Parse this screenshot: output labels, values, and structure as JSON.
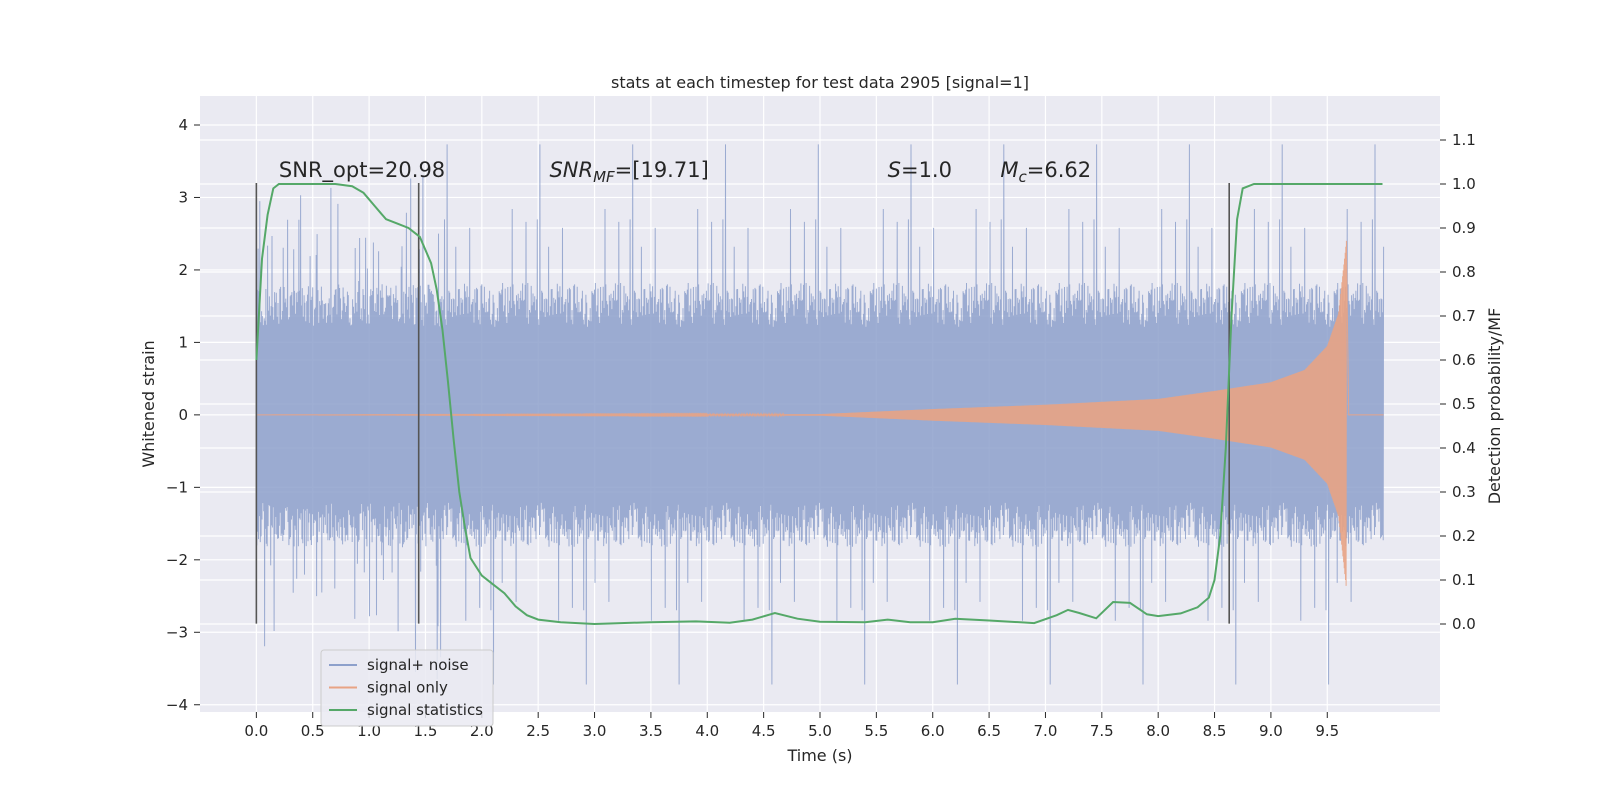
{
  "chart_data": {
    "type": "line",
    "title": "stats at each timestep for test data 2905 [signal=1]",
    "xlabel": "Time (s)",
    "ylabel": "Whitened strain",
    "ylabel_right": "Detection probability/MF",
    "xlim": [
      -0.5,
      10.5
    ],
    "ylim": [
      -4.1,
      4.4
    ],
    "ylim_right": [
      -0.2,
      1.2
    ],
    "x_ticks": [
      "0.0",
      "0.5",
      "1.0",
      "1.5",
      "2.0",
      "2.5",
      "3.0",
      "3.5",
      "4.0",
      "4.5",
      "5.0",
      "5.5",
      "6.0",
      "6.5",
      "7.0",
      "7.5",
      "8.0",
      "8.5",
      "9.0",
      "9.5"
    ],
    "y_ticks": [
      "4",
      "3",
      "2",
      "1",
      "0",
      "−1",
      "−2",
      "−3",
      "−4"
    ],
    "y_right_ticks": [
      "1.1",
      "1.0",
      "0.9",
      "0.8",
      "0.7",
      "0.6",
      "0.5",
      "0.4",
      "0.3",
      "0.2",
      "0.1",
      "0.0"
    ],
    "grid": true,
    "legend_position": "lower-left",
    "colors": {
      "noise": "#8da0cb",
      "signal": "#e8a384",
      "stats": "#55a868",
      "vline": "#555555",
      "background": "#eaeaf2"
    },
    "annotations": [
      {
        "text": "SNR_opt=20.98",
        "x": 0.2,
        "y": 3.28
      },
      {
        "text_parts": [
          "SNR",
          "MF",
          "=[19.71]"
        ],
        "x": 2.6,
        "y": 3.28,
        "style": "math-subscript"
      },
      {
        "text_parts": [
          "S",
          "",
          "=1.0"
        ],
        "x": 5.6,
        "y": 3.28,
        "style": "math"
      },
      {
        "text_parts": [
          "M",
          "c",
          "=6.62"
        ],
        "x": 6.6,
        "y": 3.28,
        "style": "math-subscript"
      }
    ],
    "vertical_lines": [
      0.0,
      1.44,
      8.63
    ],
    "vertical_line_range": [
      -2.88,
      3.2
    ],
    "series": [
      {
        "name": "signal+ noise",
        "kind": "noise",
        "x_range": [
          0.0,
          10.0
        ],
        "typical_amplitude": 1.35,
        "peak_amplitude": 4.0
      },
      {
        "name": "signal only",
        "kind": "chirp",
        "x_range": [
          0.0,
          9.67
        ],
        "envelope_x": [
          0.0,
          5.0,
          6.0,
          7.0,
          7.5,
          8.0,
          8.5,
          9.0,
          9.3,
          9.5,
          9.6,
          9.67
        ],
        "envelope_y": [
          0.0,
          0.01,
          0.08,
          0.14,
          0.18,
          0.22,
          0.33,
          0.45,
          0.62,
          0.95,
          1.4,
          2.4
        ],
        "merger_x": 9.67
      },
      {
        "name": "signal statistics",
        "kind": "line",
        "axis": "right",
        "x": [
          0.0,
          0.05,
          0.1,
          0.15,
          0.2,
          0.3,
          0.5,
          0.7,
          0.85,
          0.95,
          1.05,
          1.15,
          1.25,
          1.35,
          1.45,
          1.55,
          1.6,
          1.65,
          1.7,
          1.75,
          1.8,
          1.85,
          1.9,
          2.0,
          2.1,
          2.2,
          2.3,
          2.4,
          2.5,
          2.7,
          3.0,
          3.5,
          3.9,
          4.2,
          4.4,
          4.6,
          4.8,
          5.0,
          5.4,
          5.6,
          5.8,
          6.0,
          6.2,
          6.5,
          6.9,
          7.1,
          7.2,
          7.3,
          7.45,
          7.6,
          7.75,
          7.9,
          8.0,
          8.2,
          8.35,
          8.45,
          8.5,
          8.55,
          8.6,
          8.65,
          8.7,
          8.75,
          8.85,
          9.0,
          9.5,
          9.99
        ],
        "y": [
          0.6,
          0.83,
          0.93,
          0.99,
          1.0,
          1.0,
          1.0,
          1.0,
          0.995,
          0.98,
          0.95,
          0.92,
          0.91,
          0.9,
          0.88,
          0.82,
          0.76,
          0.67,
          0.55,
          0.42,
          0.3,
          0.22,
          0.15,
          0.11,
          0.09,
          0.07,
          0.04,
          0.02,
          0.01,
          0.004,
          0.0,
          0.004,
          0.006,
          0.003,
          0.01,
          0.025,
          0.012,
          0.005,
          0.004,
          0.01,
          0.004,
          0.004,
          0.012,
          0.008,
          0.002,
          0.02,
          0.032,
          0.025,
          0.013,
          0.05,
          0.048,
          0.022,
          0.018,
          0.024,
          0.038,
          0.06,
          0.1,
          0.2,
          0.4,
          0.7,
          0.92,
          0.99,
          1.0,
          1.0,
          1.0,
          1.0
        ]
      }
    ]
  }
}
